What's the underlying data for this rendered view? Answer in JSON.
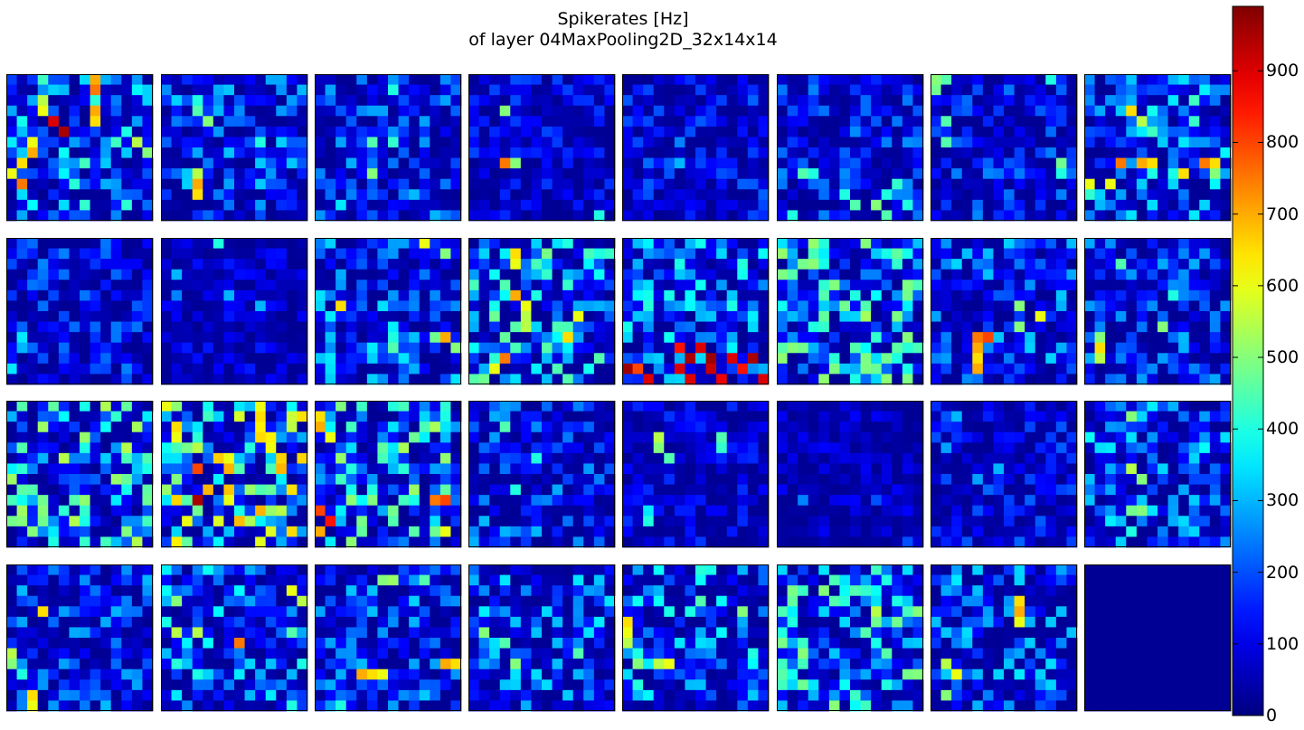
{
  "chart_data": {
    "type": "heatmap",
    "title_lines": [
      "Spikerates [Hz]",
      "of layer 04MaxPooling2D_32x14x14"
    ],
    "layout": "4 rows x 8 columns of 14x14 feature maps (32 maps)",
    "map_size": [
      14,
      14
    ],
    "num_maps": 32,
    "colormap": "jet",
    "colorbar": {
      "min": 0,
      "max": 990,
      "ticks": [
        0,
        100,
        200,
        300,
        400,
        500,
        600,
        700,
        800,
        900
      ]
    },
    "background_level": 20,
    "maps": [
      {
        "mean_rate": 160,
        "hotspots": [
          [
            0,
            8,
            700
          ],
          [
            1,
            8,
            750
          ],
          [
            2,
            3,
            550
          ],
          [
            3,
            3,
            600
          ],
          [
            4,
            4,
            900
          ],
          [
            5,
            5,
            950
          ],
          [
            6,
            2,
            600
          ],
          [
            7,
            2,
            700
          ],
          [
            8,
            1,
            650
          ],
          [
            9,
            0,
            600
          ],
          [
            10,
            1,
            750
          ],
          [
            3,
            8,
            700
          ],
          [
            4,
            8,
            650
          ],
          [
            6,
            12,
            550
          ],
          [
            7,
            13,
            500
          ]
        ]
      },
      {
        "mean_rate": 120,
        "hotspots": [
          [
            2,
            3,
            400
          ],
          [
            3,
            3,
            450
          ],
          [
            4,
            4,
            500
          ],
          [
            6,
            9,
            400
          ],
          [
            9,
            3,
            550
          ],
          [
            10,
            3,
            700
          ],
          [
            11,
            3,
            650
          ]
        ]
      },
      {
        "mean_rate": 110,
        "hotspots": [
          [
            1,
            7,
            400
          ],
          [
            6,
            5,
            450
          ],
          [
            6,
            7,
            420
          ],
          [
            9,
            5,
            500
          ],
          [
            12,
            2,
            350
          ]
        ]
      },
      {
        "mean_rate": 70,
        "hotspots": [
          [
            3,
            3,
            500
          ],
          [
            8,
            3,
            750
          ],
          [
            8,
            4,
            500
          ],
          [
            13,
            12,
            400
          ]
        ]
      },
      {
        "mean_rate": 80,
        "hotspots": [
          [
            3,
            3,
            200
          ],
          [
            6,
            5,
            250
          ],
          [
            8,
            5,
            300
          ]
        ]
      },
      {
        "mean_rate": 100,
        "hotspots": [
          [
            9,
            2,
            450
          ],
          [
            9,
            3,
            400
          ],
          [
            11,
            6,
            400
          ],
          [
            12,
            7,
            450
          ],
          [
            12,
            9,
            500
          ],
          [
            13,
            10,
            450
          ],
          [
            11,
            10,
            400
          ],
          [
            10,
            11,
            420
          ],
          [
            12,
            12,
            400
          ],
          [
            13,
            1,
            400
          ]
        ]
      },
      {
        "mean_rate": 90,
        "hotspots": [
          [
            0,
            0,
            500
          ],
          [
            0,
            1,
            450
          ],
          [
            1,
            0,
            480
          ],
          [
            4,
            1,
            450
          ],
          [
            6,
            1,
            450
          ],
          [
            8,
            12,
            480
          ],
          [
            0,
            11,
            400
          ],
          [
            9,
            12,
            400
          ]
        ]
      },
      {
        "mean_rate": 160,
        "hotspots": [
          [
            3,
            4,
            650
          ],
          [
            4,
            5,
            550
          ],
          [
            8,
            3,
            750
          ],
          [
            8,
            5,
            700
          ],
          [
            8,
            6,
            650
          ],
          [
            8,
            11,
            750
          ],
          [
            8,
            12,
            650
          ],
          [
            9,
            9,
            650
          ],
          [
            9,
            12,
            500
          ],
          [
            10,
            2,
            600
          ],
          [
            10,
            0,
            600
          ]
        ]
      },
      {
        "mean_rate": 90,
        "hotspots": [
          [
            9,
            1,
            350
          ],
          [
            10,
            1,
            300
          ],
          [
            12,
            0,
            350
          ]
        ]
      },
      {
        "mean_rate": 50,
        "hotspots": [
          [
            0,
            5,
            400
          ],
          [
            3,
            1,
            300
          ],
          [
            5,
            1,
            250
          ],
          [
            5,
            6,
            300
          ],
          [
            6,
            9,
            300
          ]
        ]
      },
      {
        "mean_rate": 130,
        "hotspots": [
          [
            0,
            10,
            600
          ],
          [
            1,
            12,
            500
          ],
          [
            6,
            2,
            650
          ],
          [
            9,
            7,
            400
          ],
          [
            10,
            7,
            450
          ],
          [
            9,
            11,
            480
          ],
          [
            9,
            12,
            700
          ],
          [
            10,
            13,
            500
          ],
          [
            11,
            1,
            350
          ]
        ]
      },
      {
        "mean_rate": 180,
        "hotspots": [
          [
            1,
            4,
            650
          ],
          [
            2,
            4,
            600
          ],
          [
            5,
            4,
            700
          ],
          [
            6,
            5,
            600
          ],
          [
            7,
            5,
            550
          ],
          [
            8,
            5,
            550
          ],
          [
            7,
            10,
            600
          ],
          [
            9,
            9,
            650
          ],
          [
            11,
            3,
            750
          ],
          [
            12,
            2,
            600
          ]
        ]
      },
      {
        "mean_rate": 150,
        "hotspots": [
          [
            10,
            5,
            850
          ],
          [
            10,
            7,
            900
          ],
          [
            11,
            6,
            950
          ],
          [
            11,
            8,
            960
          ],
          [
            11,
            10,
            900
          ],
          [
            11,
            12,
            950
          ],
          [
            12,
            0,
            960
          ],
          [
            12,
            1,
            800
          ],
          [
            12,
            5,
            900
          ],
          [
            12,
            8,
            920
          ],
          [
            12,
            11,
            850
          ],
          [
            13,
            2,
            900
          ],
          [
            13,
            6,
            900
          ],
          [
            13,
            9,
            880
          ],
          [
            13,
            13,
            900
          ]
        ]
      },
      {
        "mean_rate": 200,
        "hotspots": [
          [
            5,
            4,
            450
          ],
          [
            6,
            6,
            480
          ],
          [
            8,
            3,
            400
          ],
          [
            8,
            4,
            420
          ],
          [
            10,
            1,
            500
          ],
          [
            10,
            2,
            480
          ]
        ]
      },
      {
        "mean_rate": 120,
        "hotspots": [
          [
            6,
            8,
            500
          ],
          [
            7,
            10,
            600
          ],
          [
            8,
            8,
            500
          ],
          [
            9,
            4,
            750
          ],
          [
            9,
            5,
            800
          ],
          [
            10,
            4,
            700
          ],
          [
            11,
            4,
            650
          ],
          [
            12,
            4,
            700
          ]
        ]
      },
      {
        "mean_rate": 110,
        "hotspots": [
          [
            2,
            3,
            450
          ],
          [
            5,
            8,
            400
          ],
          [
            8,
            7,
            500
          ],
          [
            9,
            1,
            500
          ],
          [
            10,
            1,
            650
          ],
          [
            11,
            1,
            550
          ]
        ]
      },
      {
        "mean_rate": 220,
        "hotspots": [
          [
            8,
            2,
            450
          ],
          [
            9,
            3,
            480
          ],
          [
            10,
            3,
            500
          ],
          [
            11,
            3,
            480
          ],
          [
            12,
            2,
            500
          ],
          [
            9,
            6,
            450
          ],
          [
            10,
            7,
            420
          ]
        ]
      },
      {
        "mean_rate": 260,
        "hotspots": [
          [
            0,
            9,
            600
          ],
          [
            1,
            9,
            650
          ],
          [
            2,
            1,
            650
          ],
          [
            3,
            1,
            600
          ],
          [
            4,
            3,
            550
          ],
          [
            6,
            3,
            800
          ],
          [
            9,
            3,
            950
          ],
          [
            9,
            6,
            600
          ],
          [
            10,
            11,
            550
          ],
          [
            11,
            2,
            600
          ]
        ]
      },
      {
        "mean_rate": 200,
        "hotspots": [
          [
            1,
            0,
            650
          ],
          [
            2,
            0,
            700
          ],
          [
            3,
            1,
            600
          ],
          [
            9,
            11,
            750
          ],
          [
            9,
            12,
            800
          ],
          [
            10,
            0,
            800
          ],
          [
            11,
            1,
            850
          ],
          [
            12,
            0,
            700
          ],
          [
            12,
            12,
            600
          ]
        ]
      },
      {
        "mean_rate": 110,
        "hotspots": [
          [
            2,
            3,
            450
          ],
          [
            5,
            6,
            400
          ],
          [
            8,
            4,
            400
          ]
        ]
      },
      {
        "mean_rate": 60,
        "hotspots": [
          [
            3,
            3,
            550
          ],
          [
            4,
            3,
            500
          ],
          [
            5,
            4,
            450
          ],
          [
            3,
            9,
            450
          ],
          [
            4,
            9,
            420
          ],
          [
            10,
            2,
            350
          ],
          [
            11,
            2,
            400
          ]
        ]
      },
      {
        "mean_rate": 40,
        "hotspots": [
          [
            9,
            2,
            250
          ],
          [
            9,
            9,
            200
          ],
          [
            13,
            12,
            200
          ]
        ]
      },
      {
        "mean_rate": 80,
        "hotspots": [
          [
            1,
            2,
            300
          ],
          [
            4,
            1,
            280
          ],
          [
            6,
            6,
            300
          ],
          [
            7,
            4,
            280
          ]
        ]
      },
      {
        "mean_rate": 140,
        "hotspots": [
          [
            1,
            4,
            500
          ],
          [
            6,
            4,
            550
          ],
          [
            7,
            5,
            500
          ],
          [
            10,
            4,
            480
          ],
          [
            10,
            5,
            500
          ],
          [
            12,
            4,
            400
          ]
        ]
      },
      {
        "mean_rate": 110,
        "hotspots": [
          [
            4,
            3,
            650
          ],
          [
            8,
            0,
            550
          ],
          [
            9,
            0,
            500
          ],
          [
            10,
            1,
            400
          ],
          [
            12,
            2,
            650
          ],
          [
            13,
            2,
            600
          ]
        ]
      },
      {
        "mean_rate": 150,
        "hotspots": [
          [
            3,
            1,
            500
          ],
          [
            6,
            1,
            550
          ],
          [
            6,
            3,
            550
          ],
          [
            7,
            7,
            750
          ],
          [
            2,
            12,
            600
          ],
          [
            3,
            13,
            550
          ],
          [
            6,
            12,
            450
          ]
        ]
      },
      {
        "mean_rate": 120,
        "hotspots": [
          [
            1,
            6,
            500
          ],
          [
            1,
            7,
            520
          ],
          [
            1,
            10,
            450
          ],
          [
            10,
            4,
            700
          ],
          [
            10,
            5,
            650
          ],
          [
            10,
            6,
            600
          ],
          [
            9,
            12,
            700
          ],
          [
            9,
            13,
            650
          ],
          [
            13,
            2,
            400
          ]
        ]
      },
      {
        "mean_rate": 130,
        "hotspots": [
          [
            6,
            1,
            500
          ],
          [
            7,
            3,
            450
          ],
          [
            9,
            4,
            500
          ],
          [
            8,
            10,
            450
          ]
        ]
      },
      {
        "mean_rate": 150,
        "hotspots": [
          [
            5,
            0,
            650
          ],
          [
            6,
            0,
            600
          ],
          [
            7,
            0,
            550
          ],
          [
            9,
            4,
            600
          ],
          [
            9,
            3,
            550
          ],
          [
            3,
            7,
            450
          ],
          [
            4,
            11,
            500
          ],
          [
            9,
            1,
            500
          ]
        ]
      },
      {
        "mean_rate": 190,
        "hotspots": [
          [
            2,
            4,
            500
          ],
          [
            4,
            9,
            550
          ],
          [
            6,
            8,
            450
          ],
          [
            8,
            2,
            500
          ],
          [
            5,
            1,
            400
          ]
        ]
      },
      {
        "mean_rate": 130,
        "hotspots": [
          [
            3,
            8,
            650
          ],
          [
            4,
            8,
            700
          ],
          [
            5,
            8,
            600
          ],
          [
            9,
            1,
            550
          ],
          [
            10,
            2,
            600
          ],
          [
            12,
            1,
            500
          ]
        ]
      },
      {
        "mean_rate": 0,
        "hotspots": []
      }
    ]
  }
}
